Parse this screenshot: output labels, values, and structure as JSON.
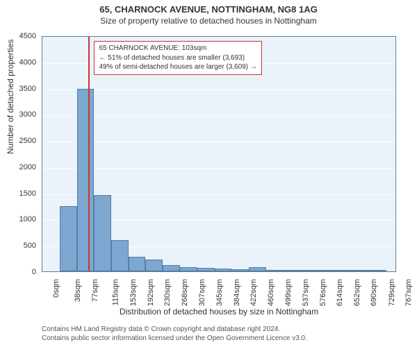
{
  "title": "65, CHARNOCK AVENUE, NOTTINGHAM, NG8 1AG",
  "subtitle": "Size of property relative to detached houses in Nottingham",
  "ylabel": "Number of detached properties",
  "xlabel": "Distribution of detached houses by size in Nottingham",
  "chart": {
    "type": "histogram",
    "background_color": "#eaf2fa",
    "grid_color": "#ffffff",
    "axis_color": "#5a7ca0",
    "bar_color": "#7ba7d0",
    "bar_border_color": "#5a7ca0",
    "reference_line_color": "#cc3333",
    "reference_value_sqm": 103,
    "xlim": [
      0,
      790
    ],
    "ylim": [
      0,
      4500
    ],
    "ytick_step": 500,
    "bin_width": 38,
    "bins_x": [
      0,
      38,
      77,
      115,
      153,
      192,
      230,
      268,
      307,
      345,
      384,
      422,
      460,
      499,
      537,
      576,
      614,
      652,
      690,
      729,
      767
    ],
    "values": [
      0,
      1250,
      3480,
      1450,
      600,
      280,
      230,
      120,
      85,
      65,
      55,
      40,
      85,
      30,
      25,
      20,
      18,
      15,
      12,
      10
    ],
    "xtick_positions": [
      0,
      38,
      77,
      115,
      153,
      192,
      230,
      268,
      307,
      345,
      384,
      422,
      460,
      499,
      537,
      576,
      614,
      652,
      690,
      729,
      767
    ],
    "xtick_labels": [
      "0sqm",
      "38sqm",
      "77sqm",
      "115sqm",
      "153sqm",
      "192sqm",
      "230sqm",
      "268sqm",
      "307sqm",
      "345sqm",
      "384sqm",
      "422sqm",
      "460sqm",
      "499sqm",
      "537sqm",
      "576sqm",
      "614sqm",
      "652sqm",
      "690sqm",
      "729sqm",
      "767sqm"
    ]
  },
  "annotation": {
    "line1": "65 CHARNOCK AVENUE: 103sqm",
    "line2": "← 51% of detached houses are smaller (3,693)",
    "line3": "49% of semi-detached houses are larger (3,609) →",
    "border_color": "#cc3333",
    "background_color": "#ffffff",
    "fontsize": 10
  },
  "credit": {
    "line1": "Contains HM Land Registry data © Crown copyright and database right 2024.",
    "line2": "Contains public sector information licensed under the Open Government Licence v3.0."
  },
  "typography": {
    "title_fontsize": 13,
    "subtitle_fontsize": 12,
    "axis_label_fontsize": 12,
    "tick_fontsize": 11,
    "credit_fontsize": 10
  }
}
